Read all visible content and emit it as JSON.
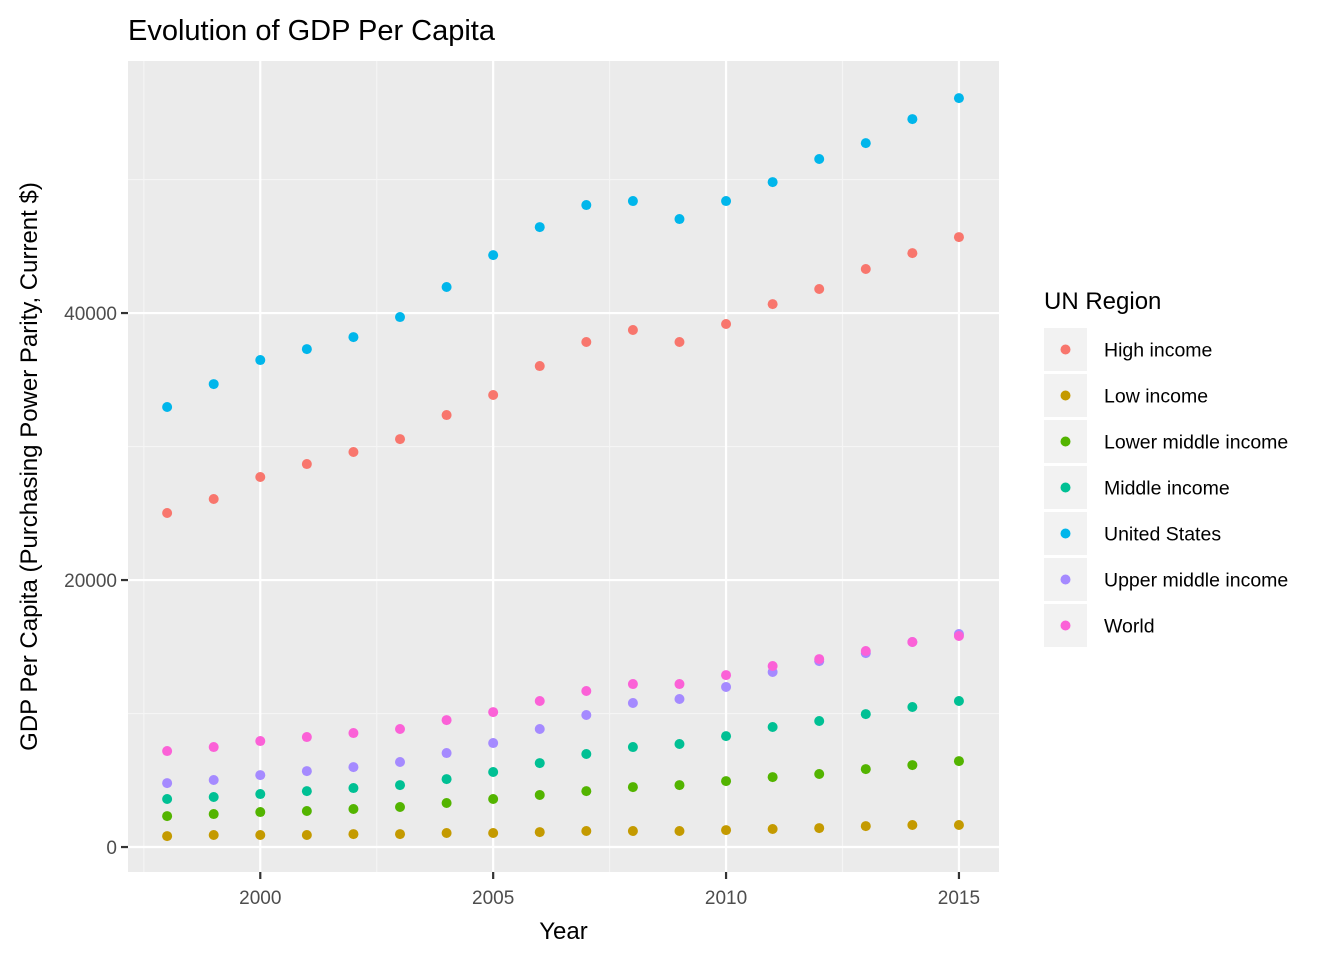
{
  "chart_data": {
    "type": "scatter",
    "title": "Evolution of GDP Per Capita",
    "xlabel": "Year",
    "ylabel": "GDP Per Capita (Purchasing Power Parity, Current $)",
    "xlim": [
      1997.16,
      2015.86
    ],
    "ylim": [
      -1870,
      58880
    ],
    "xticks": [
      2000,
      2005,
      2010,
      2015
    ],
    "xtick_labels": [
      "2000",
      "2005",
      "2010",
      "2015"
    ],
    "yticks": [
      0,
      20000,
      40000
    ],
    "ytick_labels": [
      "0",
      "20000",
      "40000"
    ],
    "grid": true,
    "legend": {
      "title": "UN Region",
      "position": "right"
    },
    "x": [
      1998,
      1999,
      2000,
      2001,
      2002,
      2003,
      2004,
      2005,
      2006,
      2007,
      2008,
      2009,
      2010,
      2011,
      2012,
      2013,
      2014,
      2015
    ],
    "series": [
      {
        "name": "High income",
        "color": "#F8766D",
        "values": [
          25020,
          26070,
          27720,
          28690,
          29590,
          30560,
          32360,
          33860,
          36030,
          37830,
          38730,
          37830,
          39180,
          40670,
          41800,
          43300,
          44490,
          45690
        ]
      },
      {
        "name": "Low income",
        "color": "#C49A00",
        "values": [
          820,
          900,
          900,
          900,
          970,
          970,
          1050,
          1050,
          1120,
          1200,
          1200,
          1200,
          1270,
          1350,
          1420,
          1570,
          1650,
          1650
        ]
      },
      {
        "name": "Lower middle income",
        "color": "#53B400",
        "values": [
          2320,
          2470,
          2620,
          2700,
          2850,
          3000,
          3300,
          3600,
          3900,
          4190,
          4490,
          4640,
          4940,
          5240,
          5470,
          5840,
          6140,
          6440
        ]
      },
      {
        "name": "Middle income",
        "color": "#00C094",
        "values": [
          3600,
          3750,
          3970,
          4190,
          4420,
          4640,
          5090,
          5620,
          6290,
          6970,
          7490,
          7720,
          8310,
          8990,
          9440,
          9960,
          10490,
          10940
        ]
      },
      {
        "name": "United States",
        "color": "#00B6EB",
        "values": [
          32960,
          34680,
          36480,
          37300,
          38200,
          39700,
          41950,
          44340,
          46440,
          48090,
          48390,
          47040,
          48390,
          49810,
          51540,
          52730,
          54530,
          56100
        ]
      },
      {
        "name": "Upper middle income",
        "color": "#A58AFF",
        "values": [
          4790,
          5020,
          5390,
          5690,
          5990,
          6370,
          7040,
          7790,
          8840,
          9890,
          10790,
          11090,
          11990,
          13110,
          13930,
          14530,
          15360,
          15960
        ]
      },
      {
        "name": "World",
        "color": "#FB61D7",
        "values": [
          7190,
          7490,
          7940,
          8240,
          8540,
          8840,
          9510,
          10110,
          10940,
          11690,
          12210,
          12210,
          12880,
          13560,
          14080,
          14680,
          15360,
          15810
        ]
      }
    ],
    "colors": {
      "panel_background": "#EBEBEB",
      "grid_major": "#FFFFFF",
      "grid_minor": "#F5F5F5",
      "tick_text": "#4D4D4D",
      "tick_mark": "#333333",
      "legend_key_background": "#F2F2F2"
    }
  }
}
